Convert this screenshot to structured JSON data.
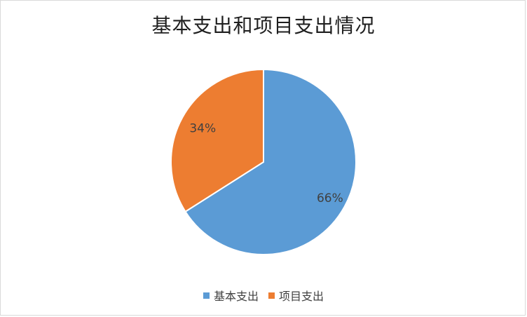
{
  "chart_data": {
    "type": "pie",
    "title": "基本支出和项目支出情况",
    "categories": [
      "基本支出",
      "项目支出"
    ],
    "values": [
      66,
      34
    ],
    "labels": [
      "66%",
      "34%"
    ],
    "colors": [
      "#5B9BD5",
      "#ED7D31"
    ],
    "legend_position": "bottom"
  }
}
